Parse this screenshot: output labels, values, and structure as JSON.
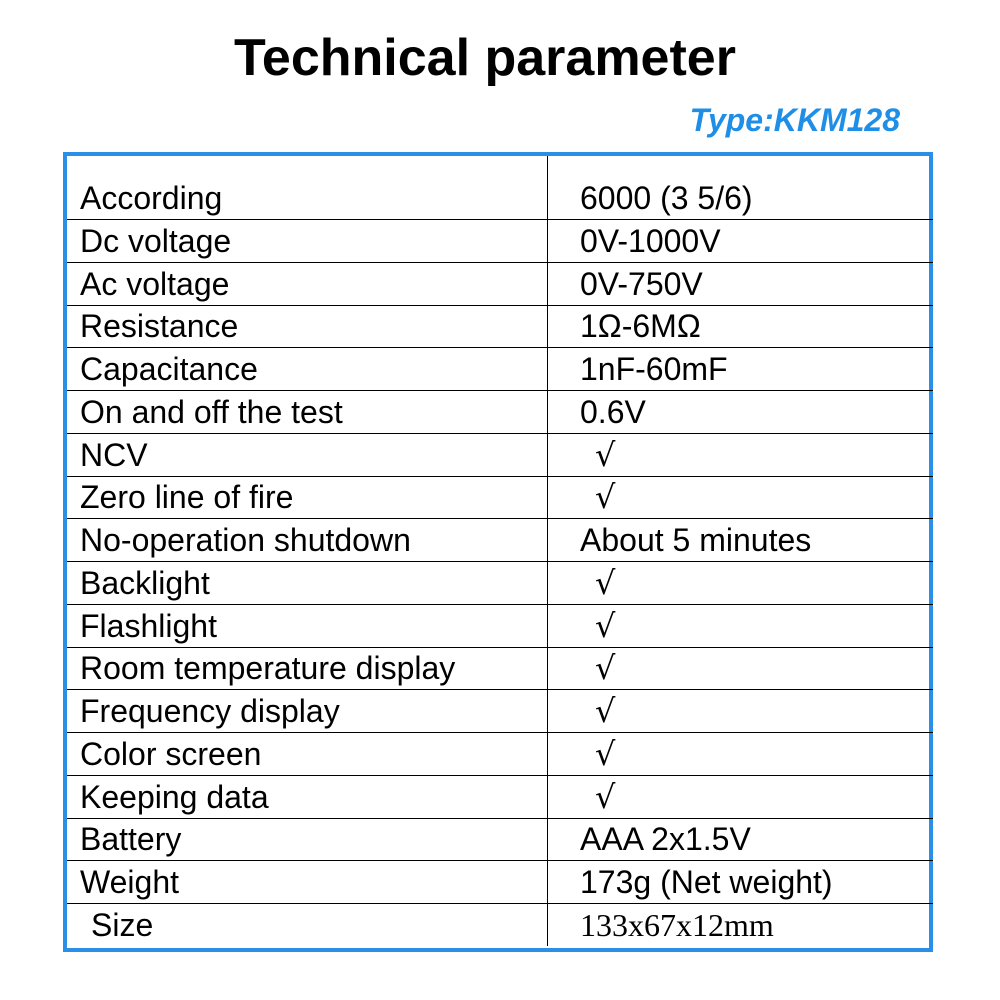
{
  "header": {
    "title": "Technical parameter",
    "subtitle": "Type:KKM128"
  },
  "table": {
    "rows": [
      [
        "According",
        "6000 (3 5/6)"
      ],
      [
        "Dc voltage",
        "0V-1000V"
      ],
      [
        "Ac voltage",
        "0V-750V"
      ],
      [
        "Resistance",
        "1Ω-6MΩ"
      ],
      [
        "Capacitance",
        "1nF-60mF"
      ],
      [
        "On and off the test",
        "0.6V"
      ],
      [
        "NCV",
        "√"
      ],
      [
        "Zero line of fire",
        "√"
      ],
      [
        "No-operation shutdown",
        "About 5 minutes"
      ],
      [
        "Backlight",
        "√"
      ],
      [
        "Flashlight",
        "√"
      ],
      [
        "Room temperature display",
        "√"
      ],
      [
        "Frequency display",
        "√"
      ],
      [
        "Color screen",
        "√"
      ],
      [
        "Keeping data",
        "√"
      ],
      [
        "Battery",
        "AAA 2x1.5V"
      ],
      [
        "Weight",
        "173g (Net weight)"
      ],
      [
        "Size",
        "133x67x12mm"
      ]
    ]
  }
}
